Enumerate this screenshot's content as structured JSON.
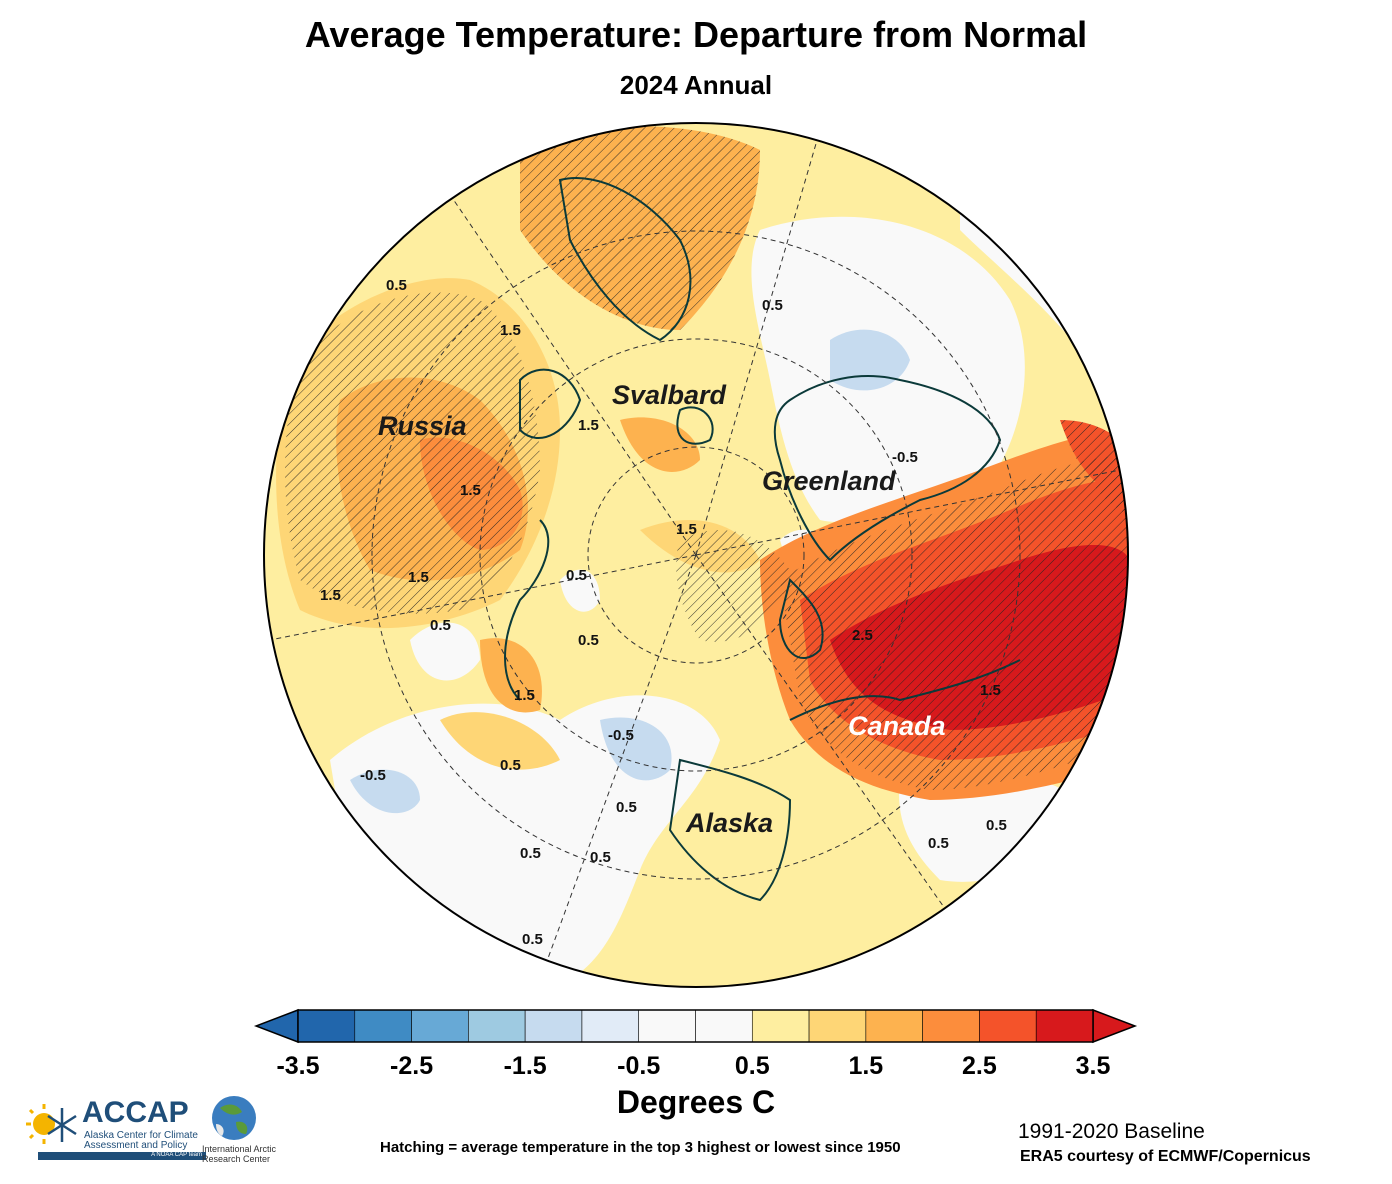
{
  "title": "Average Temperature: Departure from Normal",
  "subtitle": "2024 Annual",
  "regions": {
    "russia": "Russia",
    "svalbard": "Svalbard",
    "greenland": "Greenland",
    "canada": "Canada",
    "alaska": "Alaska"
  },
  "contour_labels": [
    "0.5",
    "1.5",
    "-0.5",
    "2.5"
  ],
  "colorbar": {
    "labels": [
      "-3.5",
      "-2.5",
      "-1.5",
      "-0.5",
      "0.5",
      "1.5",
      "2.5",
      "3.5"
    ],
    "colors": [
      "#2166ac",
      "#3f8bc4",
      "#67a9d6",
      "#9ecae1",
      "#c6dbef",
      "#e1ebf7",
      "#f9f9f9",
      "#f9f9f9",
      "#feeea0",
      "#fed676",
      "#fdb24f",
      "#fc8d3c",
      "#f4532a",
      "#d7191c"
    ],
    "title": "Degrees C"
  },
  "hatching_note": "Hatching = average temperature in the top 3 highest or lowest since 1950",
  "baseline": "1991-2020 Baseline",
  "credit": "ERA5 courtesy of ECMWF/Copernicus",
  "logos": {
    "accap_name": "ACCAP",
    "accap_line1": "Alaska Center for Climate",
    "accap_line2": "Assessment and Policy",
    "accap_tag": "A NOAA CAP team",
    "iarc_line1": "International Arctic",
    "iarc_line2": "Research Center"
  }
}
